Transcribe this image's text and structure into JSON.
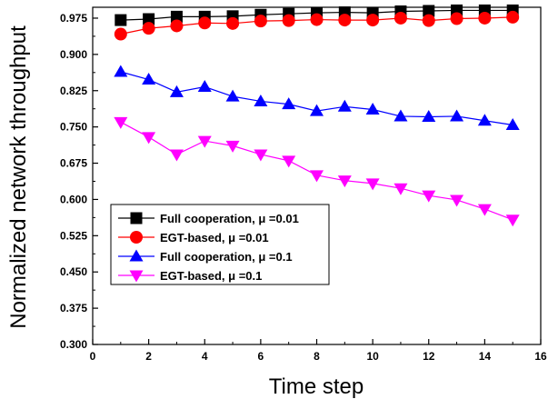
{
  "chart_data": {
    "type": "line",
    "xlabel": "Time step",
    "ylabel": "Normalized network throughput",
    "xlim": [
      0,
      16
    ],
    "ylim": [
      0.3,
      0.9975
    ],
    "x_ticks": [
      0,
      2,
      4,
      6,
      8,
      10,
      12,
      14,
      16
    ],
    "y_ticks": [
      0.3,
      0.375,
      0.45,
      0.525,
      0.6,
      0.675,
      0.75,
      0.825,
      0.9,
      0.975
    ],
    "y_tick_labels": [
      "0.300",
      "0.375",
      "0.450",
      "0.525",
      "0.600",
      "0.675",
      "0.750",
      "0.825",
      "0.900",
      "0.975"
    ],
    "grid": false,
    "legend_position": "lower-left",
    "x": [
      1,
      2,
      3,
      4,
      5,
      6,
      7,
      8,
      9,
      10,
      11,
      12,
      13,
      14,
      15
    ],
    "series": [
      {
        "name": "Full cooperation, μ =0.01",
        "color": "#000000",
        "marker": "square",
        "values": [
          0.971,
          0.973,
          0.978,
          0.978,
          0.979,
          0.982,
          0.984,
          0.986,
          0.987,
          0.986,
          0.989,
          0.99,
          0.991,
          0.991,
          0.991
        ]
      },
      {
        "name": "EGT-based, μ =0.01",
        "color": "#ff0000",
        "marker": "circle",
        "values": [
          0.942,
          0.954,
          0.959,
          0.965,
          0.964,
          0.969,
          0.97,
          0.972,
          0.971,
          0.971,
          0.975,
          0.97,
          0.974,
          0.975,
          0.977
        ]
      },
      {
        "name": "Full cooperation, μ =0.1",
        "color": "#0000ff",
        "marker": "triangle-up",
        "values": [
          0.864,
          0.848,
          0.822,
          0.833,
          0.813,
          0.803,
          0.797,
          0.783,
          0.792,
          0.786,
          0.772,
          0.771,
          0.772,
          0.763,
          0.754
        ]
      },
      {
        "name": "EGT-based, μ =0.1",
        "color": "#ff00ff",
        "marker": "triangle-down",
        "values": [
          0.76,
          0.729,
          0.693,
          0.721,
          0.711,
          0.693,
          0.68,
          0.65,
          0.639,
          0.633,
          0.623,
          0.608,
          0.599,
          0.58,
          0.558
        ]
      }
    ]
  }
}
